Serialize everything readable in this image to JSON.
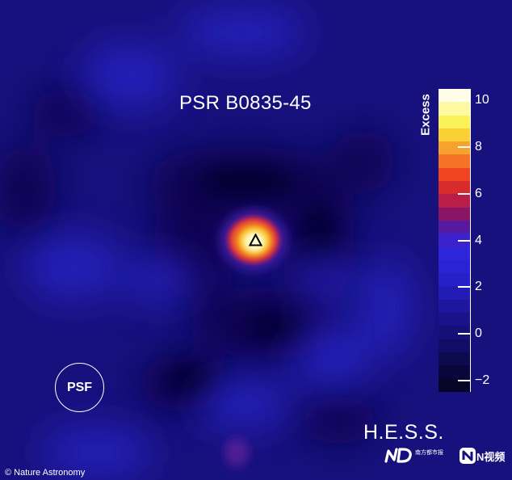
{
  "image": {
    "title": "PSR B0835-45",
    "psf_label": "PSF",
    "instrument": "H.E.S.S.",
    "credit": "© Nature Astronomy",
    "logos": {
      "nd_subtext": "南方都市报",
      "n_video": "N视频"
    }
  },
  "colorbar": {
    "title": "Excess",
    "range": [
      -2.5,
      10.5
    ],
    "ticks": [
      {
        "value": 10,
        "label": "10"
      },
      {
        "value": 8,
        "label": "8"
      },
      {
        "value": 6,
        "label": "6"
      },
      {
        "value": 4,
        "label": "4"
      },
      {
        "value": 2,
        "label": "2"
      },
      {
        "value": 0,
        "label": "0"
      },
      {
        "value": -2,
        "label": "−2"
      }
    ],
    "colors": [
      "#fffce8",
      "#fdf9a0",
      "#fbf259",
      "#f9d133",
      "#f7a22c",
      "#f47326",
      "#f14522",
      "#d82c2c",
      "#b81e48",
      "#8a1466",
      "#561aa0",
      "#3b22cf",
      "#2e24da",
      "#2a22d5",
      "#2620c8",
      "#221cb5",
      "#1d17a0",
      "#19138b",
      "#151078",
      "#110d64",
      "#0d0a50",
      "#09063c",
      "#060427"
    ]
  }
}
